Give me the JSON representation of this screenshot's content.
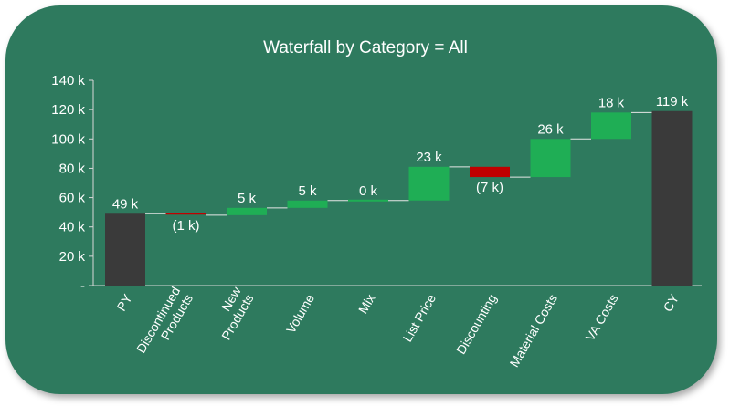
{
  "chart_data": {
    "type": "bar",
    "title": "Waterfall by Category = All",
    "categories": [
      "PY",
      "Discontinued Products",
      "New Products",
      "Volume",
      "Mix",
      "List Price",
      "Discounting",
      "Material Costs",
      "VA Costs",
      "CY"
    ],
    "category_lines": [
      [
        "PY"
      ],
      [
        "Discontinued",
        "Products"
      ],
      [
        "New",
        "Products"
      ],
      [
        "Volume"
      ],
      [
        "Mix"
      ],
      [
        "List Price"
      ],
      [
        "Discounting"
      ],
      [
        "Material Costs"
      ],
      [
        "VA Costs"
      ],
      [
        "CY"
      ]
    ],
    "kinds": [
      "total",
      "delta",
      "delta",
      "delta",
      "delta",
      "delta",
      "delta",
      "delta",
      "delta",
      "total"
    ],
    "values": [
      49,
      -1,
      5,
      5,
      0,
      23,
      -7,
      26,
      18,
      119
    ],
    "labels": [
      "49 k",
      "(1 k)",
      "5 k",
      "5 k",
      "0 k",
      "23 k",
      "(7 k)",
      "26 k",
      "18 k",
      "119 k"
    ],
    "ylim": [
      0,
      140
    ],
    "yticks": [
      0,
      20,
      40,
      60,
      80,
      100,
      120,
      140
    ],
    "ytick_labels": [
      "-",
      "20 k",
      "40 k",
      "60 k",
      "80 k",
      "100 k",
      "120 k",
      "140 k"
    ],
    "xlabel": "",
    "ylabel": "",
    "grid": false,
    "colors": {
      "total": "#3a3a3a",
      "increase": "#1fae55",
      "decrease": "#c00000",
      "background": "#2e7a5e",
      "text": "#ffffff"
    }
  }
}
